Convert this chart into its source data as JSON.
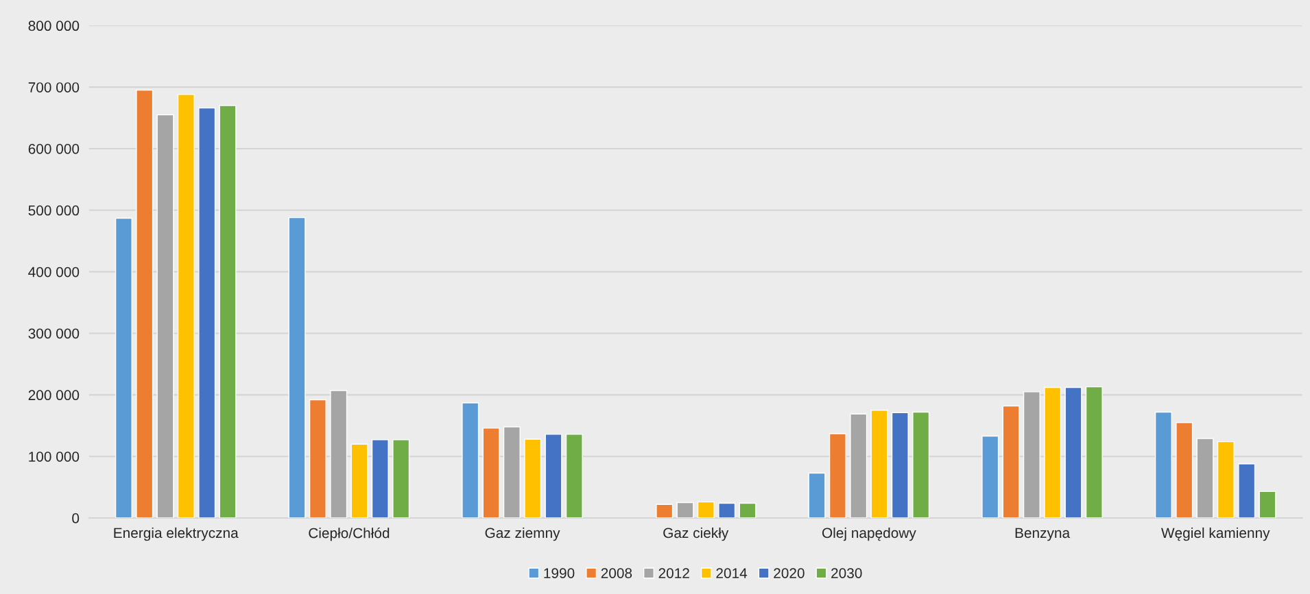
{
  "chart_data": {
    "type": "bar",
    "categories": [
      "Energia elektryczna",
      "Ciepło/Chłód",
      "Gaz ziemny",
      "Gaz ciekły",
      "Olej napędowy",
      "Benzyna",
      "Węgiel kamienny"
    ],
    "series": [
      {
        "name": "1990",
        "color": "#5b9bd5",
        "values": [
          487000,
          488000,
          187000,
          null,
          73000,
          133000,
          172000
        ]
      },
      {
        "name": "2008",
        "color": "#ed7d31",
        "values": [
          695000,
          192000,
          146000,
          22000,
          137000,
          182000,
          155000
        ]
      },
      {
        "name": "2012",
        "color": "#a5a5a5",
        "values": [
          655000,
          207000,
          148000,
          25000,
          169000,
          205000,
          129000
        ]
      },
      {
        "name": "2014",
        "color": "#ffc000",
        "values": [
          688000,
          120000,
          128000,
          26000,
          175000,
          212000,
          124000
        ]
      },
      {
        "name": "2020",
        "color": "#4472c4",
        "values": [
          666000,
          127000,
          136000,
          24000,
          171000,
          212000,
          88000
        ]
      },
      {
        "name": "2030",
        "color": "#70ad47",
        "values": [
          670000,
          127000,
          136000,
          24000,
          172000,
          213000,
          43000
        ]
      }
    ],
    "ylim": [
      0,
      800000
    ],
    "yticks": [
      0,
      {
        "value": 100000,
        "label": "100 000"
      },
      {
        "value": 200000,
        "label": "200 000"
      },
      {
        "value": 300000,
        "label": "300 000"
      },
      {
        "value": 400000,
        "label": "400 000"
      },
      {
        "value": 500000,
        "label": "500 000"
      },
      {
        "value": 600000,
        "label": "600 000"
      },
      {
        "value": 700000,
        "label": "700 000"
      },
      {
        "value": 800000,
        "label": "800 000"
      }
    ],
    "grid": "y",
    "legend": "bottom"
  }
}
